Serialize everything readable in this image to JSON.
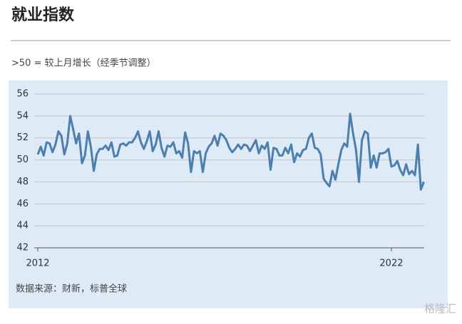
{
  "chart_data": {
    "type": "line",
    "title": "就业指数",
    "subtitle": ">50 = 较上月增长（经季节调整）",
    "source": "数据来源：财新，标普全球",
    "watermark": "格隆汇",
    "categories": [
      "2012",
      null,
      null,
      null,
      null,
      null,
      null,
      null,
      null,
      null,
      null,
      null,
      null,
      null,
      null,
      null,
      null,
      null,
      null,
      null,
      null,
      null,
      null,
      null,
      null,
      null,
      null,
      null,
      null,
      null,
      null,
      null,
      null,
      null,
      null,
      null,
      null,
      null,
      null,
      null,
      null,
      null,
      null,
      null,
      null,
      null,
      null,
      null,
      null,
      null,
      null,
      null,
      null,
      null,
      null,
      null,
      null,
      null,
      null,
      null,
      null,
      null,
      null,
      null,
      null,
      null,
      null,
      null,
      null,
      null,
      null,
      null,
      null,
      null,
      null,
      null,
      null,
      null,
      null,
      null,
      null,
      null,
      null,
      null,
      null,
      null,
      null,
      null,
      null,
      null,
      null,
      null,
      null,
      null,
      null,
      null,
      null,
      null,
      null,
      null,
      null,
      null,
      null,
      null,
      null,
      null,
      null,
      null,
      null,
      null,
      null,
      null,
      null,
      null,
      null,
      null,
      null,
      null,
      null,
      null,
      "2022",
      null,
      null,
      null,
      null,
      null,
      null,
      null,
      null,
      null,
      null,
      null
    ],
    "values": [
      50.5,
      51.2,
      50.4,
      51.6,
      51.5,
      50.7,
      51.4,
      52.6,
      52.2,
      50.5,
      51.5,
      54.0,
      52.8,
      51.5,
      52.4,
      49.7,
      50.4,
      52.6,
      51.2,
      49.0,
      50.5,
      51.0,
      51.0,
      51.3,
      50.9,
      51.6,
      50.3,
      50.4,
      51.4,
      51.5,
      51.3,
      51.6,
      51.6,
      52.0,
      52.6,
      51.6,
      51.0,
      51.7,
      52.6,
      50.8,
      51.4,
      52.6,
      51.1,
      50.3,
      51.3,
      51.2,
      51.6,
      50.6,
      50.8,
      50.2,
      52.5,
      51.5,
      48.9,
      50.8,
      50.6,
      50.8,
      48.9,
      50.6,
      51.2,
      51.5,
      52.2,
      51.3,
      52.4,
      52.2,
      51.8,
      51.1,
      50.7,
      51.0,
      51.4,
      51.0,
      51.4,
      51.3,
      50.8,
      51.3,
      51.8,
      50.6,
      51.3,
      51.0,
      51.6,
      49.1,
      51.1,
      51.0,
      50.4,
      50.4,
      51.1,
      50.6,
      51.4,
      49.8,
      50.6,
      50.3,
      50.9,
      51.0,
      52.0,
      52.4,
      51.1,
      51.0,
      50.5,
      48.3,
      47.9,
      47.6,
      49.0,
      48.2,
      49.6,
      50.9,
      51.5,
      51.2,
      54.2,
      52.4,
      50.9,
      48.0,
      51.8,
      52.6,
      52.4,
      49.3,
      50.4,
      49.3,
      50.6,
      50.6,
      50.7,
      51.0,
      49.4,
      49.5,
      49.9,
      49.1,
      48.6,
      49.6,
      48.7,
      49.0,
      48.6,
      51.4,
      47.3,
      48.0
    ],
    "color": "#4a7fb0",
    "ylim": [
      42,
      56
    ],
    "yticks": [
      42,
      44,
      46,
      48,
      50,
      52,
      54,
      56
    ],
    "grid": true
  }
}
